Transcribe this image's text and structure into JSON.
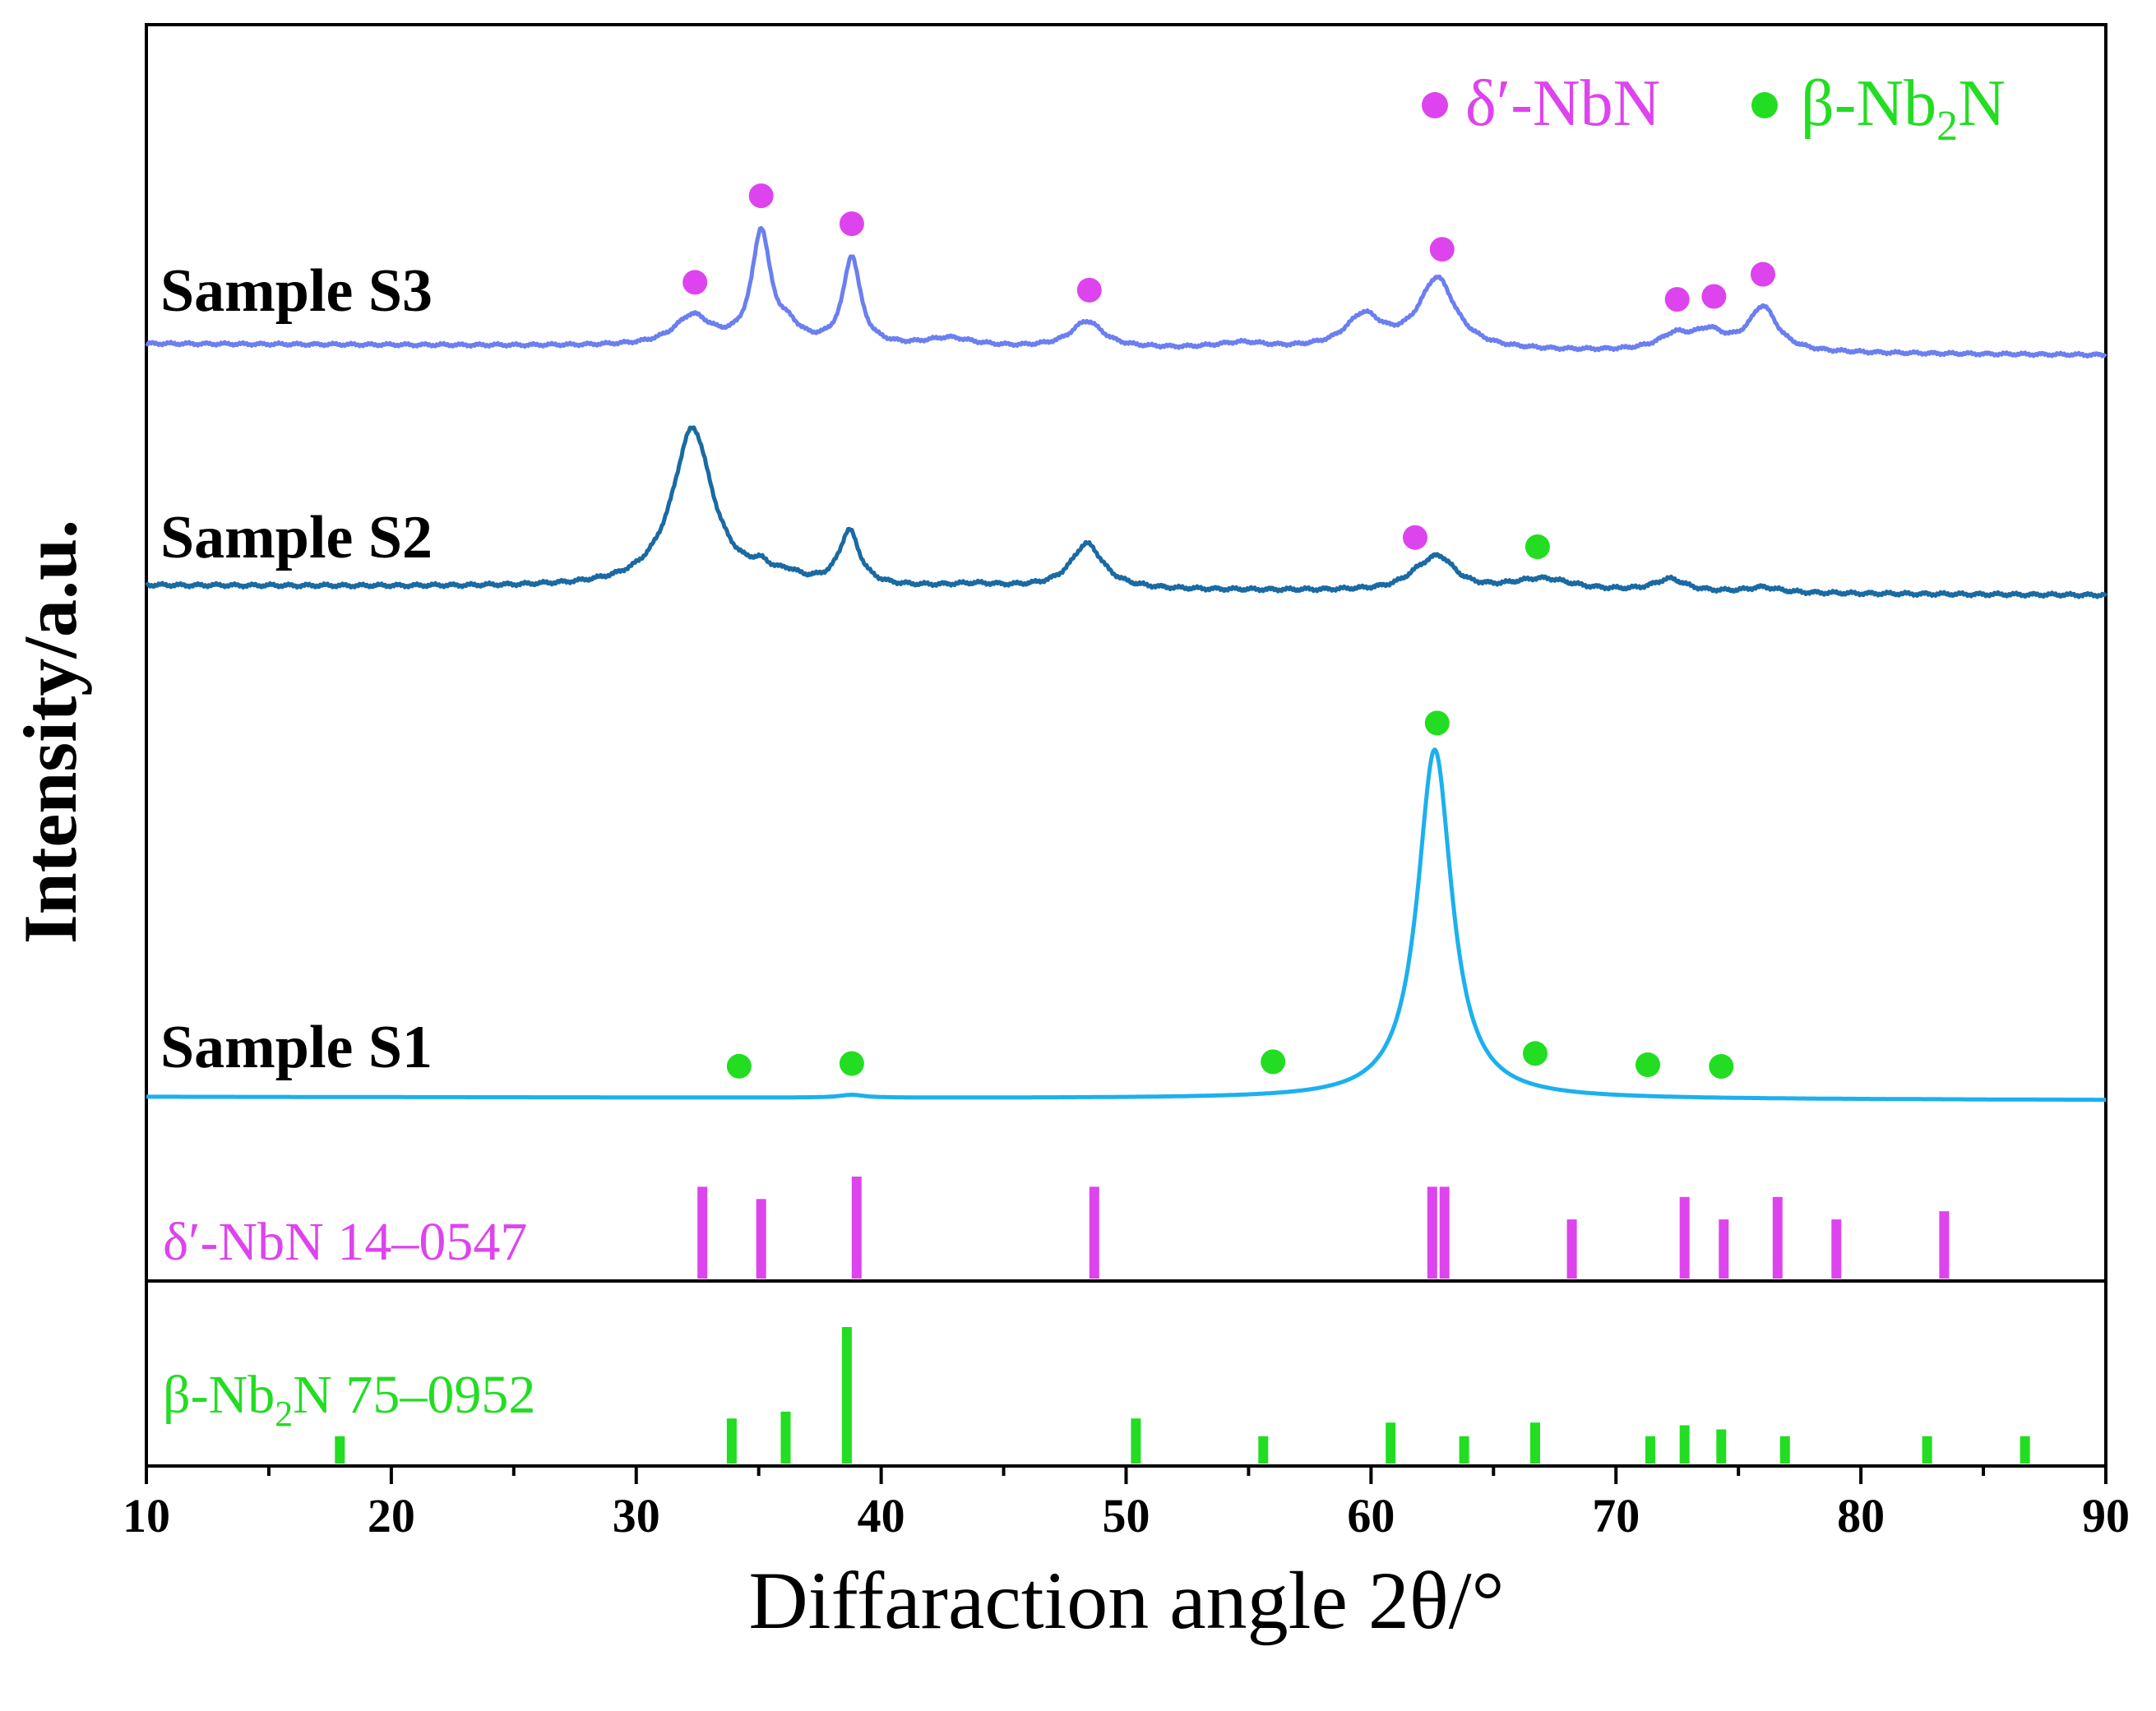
{
  "chart_data": {
    "type": "line",
    "xlabel": "Diffaraction angle 2θ/°",
    "ylabel": "Intensity/a.u.",
    "xlim": [
      10,
      90
    ],
    "xticks": [
      10,
      20,
      30,
      40,
      50,
      60,
      70,
      80,
      90
    ],
    "xtick_labels": [
      "10",
      "20",
      "30",
      "40",
      "50",
      "60",
      "70",
      "80",
      "90"
    ],
    "grid": false,
    "legend_position": "top-right",
    "legend": [
      {
        "label": "δ′-NbN",
        "marker": "circle",
        "color": "#dd44ee"
      },
      {
        "label_main": "β-Nb",
        "label_sub": "2",
        "label_tail": "N",
        "marker": "circle",
        "color": "#22dd22"
      }
    ],
    "series": [
      {
        "name": "Sample S3",
        "color": "#6b7ff0",
        "peaks": [
          {
            "x": 32.3,
            "h": 0.1,
            "w": 0.9
          },
          {
            "x": 35.1,
            "h": 0.38,
            "w": 0.45
          },
          {
            "x": 36.2,
            "h": 0.05,
            "w": 0.6
          },
          {
            "x": 38.8,
            "h": 0.3,
            "w": 0.42
          },
          {
            "x": 42.8,
            "h": 0.03,
            "w": 1.2
          },
          {
            "x": 48.4,
            "h": 0.09,
            "w": 0.8
          },
          {
            "x": 54.7,
            "h": 0.02,
            "w": 1.2
          },
          {
            "x": 59.7,
            "h": 0.11,
            "w": 0.9
          },
          {
            "x": 62.7,
            "h": 0.24,
            "w": 0.9
          },
          {
            "x": 72.4,
            "h": 0.05,
            "w": 0.8
          },
          {
            "x": 73.8,
            "h": 0.06,
            "w": 0.8
          },
          {
            "x": 76.0,
            "h": 0.15,
            "w": 0.7
          }
        ],
        "markers": [
          {
            "x": 32.4,
            "phase": "δ′-NbN"
          },
          {
            "x": 35.1,
            "phase": "δ′-NbN"
          },
          {
            "x": 38.8,
            "phase": "δ′-NbN"
          },
          {
            "x": 48.5,
            "phase": "δ′-NbN"
          },
          {
            "x": 62.9,
            "phase": "δ′-NbN"
          },
          {
            "x": 72.5,
            "phase": "δ′-NbN"
          },
          {
            "x": 74.0,
            "phase": "δ′-NbN"
          },
          {
            "x": 76.0,
            "phase": "δ′-NbN"
          }
        ]
      },
      {
        "name": "Sample S2",
        "color": "#1a6aa3",
        "peaks": [
          {
            "x": 32.3,
            "h": 0.88,
            "w": 1.0
          },
          {
            "x": 35.1,
            "h": 0.06,
            "w": 0.5
          },
          {
            "x": 36.2,
            "h": 0.04,
            "w": 0.6
          },
          {
            "x": 38.7,
            "h": 0.3,
            "w": 0.5
          },
          {
            "x": 43.8,
            "h": 0.02,
            "w": 1.5
          },
          {
            "x": 48.4,
            "h": 0.25,
            "w": 0.8
          },
          {
            "x": 62.0,
            "h": 0.06,
            "w": 0.8
          },
          {
            "x": 62.8,
            "h": 0.16,
            "w": 0.8
          },
          {
            "x": 67.0,
            "h": 0.07,
            "w": 1.6
          },
          {
            "x": 72.2,
            "h": 0.07,
            "w": 0.8
          },
          {
            "x": 76.0,
            "h": 0.03,
            "w": 0.8
          }
        ],
        "markers": [
          {
            "x": 61.8,
            "phase": "δ′-NbN"
          },
          {
            "x": 66.8,
            "phase": "β-Nb2N"
          }
        ]
      },
      {
        "name": "Sample S1",
        "color": "#1cb0ee",
        "peaks": [
          {
            "x": 62.6,
            "h": 1.0,
            "w": 0.85
          },
          {
            "x": 38.8,
            "h": 0.008,
            "w": 0.6
          }
        ],
        "markers": [
          {
            "x": 34.2,
            "phase": "β-Nb2N"
          },
          {
            "x": 38.8,
            "phase": "β-Nb2N"
          },
          {
            "x": 56.0,
            "phase": "β-Nb2N"
          },
          {
            "x": 62.7,
            "phase": "β-Nb2N"
          },
          {
            "x": 66.7,
            "phase": "β-Nb2N"
          },
          {
            "x": 71.3,
            "phase": "β-Nb2N"
          },
          {
            "x": 74.3,
            "phase": "β-Nb2N"
          }
        ]
      }
    ],
    "reference_patterns": [
      {
        "label": "δ′-NbN 14–0547",
        "color": "#dd44ee",
        "lines": [
          {
            "x": 32.7,
            "rel": 0.9
          },
          {
            "x": 35.1,
            "rel": 0.78
          },
          {
            "x": 39.0,
            "rel": 1.0
          },
          {
            "x": 48.7,
            "rel": 0.9
          },
          {
            "x": 62.5,
            "rel": 0.9
          },
          {
            "x": 63.0,
            "rel": 0.9
          },
          {
            "x": 68.2,
            "rel": 0.58
          },
          {
            "x": 72.8,
            "rel": 0.8
          },
          {
            "x": 74.4,
            "rel": 0.58
          },
          {
            "x": 76.6,
            "rel": 0.8
          },
          {
            "x": 79.0,
            "rel": 0.58
          },
          {
            "x": 83.4,
            "rel": 0.66
          }
        ]
      },
      {
        "label_main": "β-Nb",
        "label_sub": "2",
        "label_tail": "N 75–0952",
        "color": "#22dd22",
        "lines": [
          {
            "x": 17.9,
            "rel": 0.2
          },
          {
            "x": 33.9,
            "rel": 0.33
          },
          {
            "x": 36.1,
            "rel": 0.38
          },
          {
            "x": 38.6,
            "rel": 1.0
          },
          {
            "x": 50.4,
            "rel": 0.33
          },
          {
            "x": 55.6,
            "rel": 0.2
          },
          {
            "x": 60.8,
            "rel": 0.3
          },
          {
            "x": 63.8,
            "rel": 0.2
          },
          {
            "x": 66.7,
            "rel": 0.3
          },
          {
            "x": 71.4,
            "rel": 0.2
          },
          {
            "x": 72.8,
            "rel": 0.28
          },
          {
            "x": 74.3,
            "rel": 0.25
          },
          {
            "x": 76.9,
            "rel": 0.2
          },
          {
            "x": 82.7,
            "rel": 0.2
          },
          {
            "x": 86.7,
            "rel": 0.2
          }
        ]
      }
    ]
  }
}
